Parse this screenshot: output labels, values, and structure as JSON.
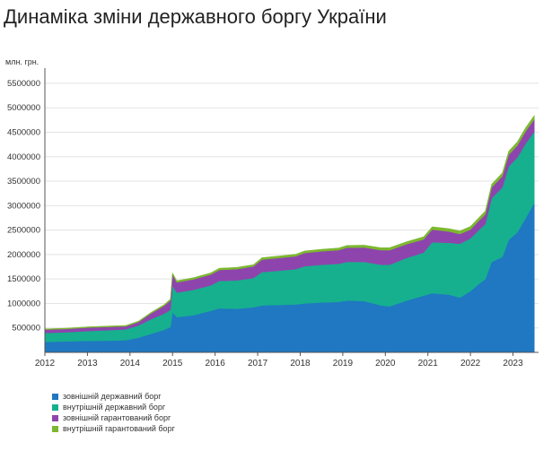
{
  "title": "Динаміка зміни державного боргу України",
  "chart_data": {
    "type": "area",
    "stacked": true,
    "ylabel": "млн. грн.",
    "ylim": [
      0,
      5700000
    ],
    "yticks": [
      500000,
      1000000,
      1500000,
      2000000,
      2500000,
      3000000,
      3500000,
      4000000,
      4500000,
      5000000,
      5500000
    ],
    "ytick_labels": [
      "500000",
      "1000000",
      "1500000",
      "2000000",
      "2500000",
      "3000000",
      "3500000",
      "4000000",
      "4500000",
      "5000000",
      "5500000"
    ],
    "xlim": [
      2012.0,
      2023.6
    ],
    "xticks": [
      2012,
      2013,
      2014,
      2015,
      2016,
      2017,
      2018,
      2019,
      2020,
      2021,
      2022,
      2023
    ],
    "xtick_labels": [
      "2012",
      "2013",
      "2014",
      "2015",
      "2016",
      "2017",
      "2018",
      "2019",
      "2020",
      "2021",
      "2022",
      "2023"
    ],
    "grid": true,
    "legend_position": "bottom-left",
    "x": [
      2012.0,
      2012.5,
      2013.0,
      2013.5,
      2013.9,
      2014.2,
      2014.5,
      2014.8,
      2014.95,
      2015.0,
      2015.1,
      2015.5,
      2015.9,
      2016.1,
      2016.5,
      2016.9,
      2017.1,
      2017.5,
      2017.9,
      2018.1,
      2018.5,
      2018.9,
      2019.1,
      2019.5,
      2019.9,
      2020.1,
      2020.5,
      2020.9,
      2021.1,
      2021.5,
      2021.75,
      2022.0,
      2022.2,
      2022.35,
      2022.5,
      2022.75,
      2022.9,
      2023.1,
      2023.3,
      2023.5
    ],
    "series": [
      {
        "name": "зовнішній державний борг",
        "color": "#1f78c1",
        "values": [
          215000,
          225000,
          235000,
          240000,
          250000,
          300000,
          380000,
          460000,
          520000,
          820000,
          720000,
          760000,
          850000,
          900000,
          890000,
          920000,
          960000,
          970000,
          980000,
          1000000,
          1020000,
          1030000,
          1060000,
          1050000,
          960000,
          940000,
          1060000,
          1160000,
          1210000,
          1180000,
          1120000,
          1250000,
          1400000,
          1500000,
          1850000,
          1950000,
          2300000,
          2450000,
          2750000,
          3060000
        ]
      },
      {
        "name": "внутрішній державний борг",
        "color": "#16b08e",
        "values": [
          180000,
          185000,
          200000,
          215000,
          220000,
          250000,
          300000,
          330000,
          350000,
          540000,
          500000,
          520000,
          520000,
          560000,
          580000,
          600000,
          680000,
          700000,
          720000,
          760000,
          770000,
          780000,
          790000,
          800000,
          830000,
          850000,
          870000,
          880000,
          1040000,
          1060000,
          1100000,
          1080000,
          1100000,
          1120000,
          1300000,
          1420000,
          1500000,
          1530000,
          1520000,
          1450000
        ]
      },
      {
        "name": "зовнішній гарантований борг",
        "color": "#8e44ad",
        "values": [
          70000,
          68000,
          70000,
          65000,
          62000,
          70000,
          120000,
          160000,
          190000,
          230000,
          210000,
          215000,
          220000,
          225000,
          230000,
          235000,
          255000,
          260000,
          265000,
          270000,
          275000,
          280000,
          290000,
          295000,
          300000,
          300000,
          280000,
          270000,
          260000,
          230000,
          200000,
          180000,
          190000,
          200000,
          220000,
          230000,
          240000,
          245000,
          250000,
          255000
        ]
      },
      {
        "name": "внутрішній гарантований борг",
        "color": "#7cb82f",
        "values": [
          15000,
          16000,
          17000,
          18000,
          18000,
          20000,
          22000,
          25000,
          30000,
          35000,
          34000,
          34000,
          35000,
          36000,
          37000,
          38000,
          40000,
          40000,
          41000,
          42000,
          43000,
          44000,
          46000,
          47000,
          48000,
          50000,
          52000,
          55000,
          58000,
          60000,
          62000,
          65000,
          66000,
          68000,
          70000,
          72000,
          74000,
          76000,
          78000,
          80000
        ]
      }
    ]
  }
}
